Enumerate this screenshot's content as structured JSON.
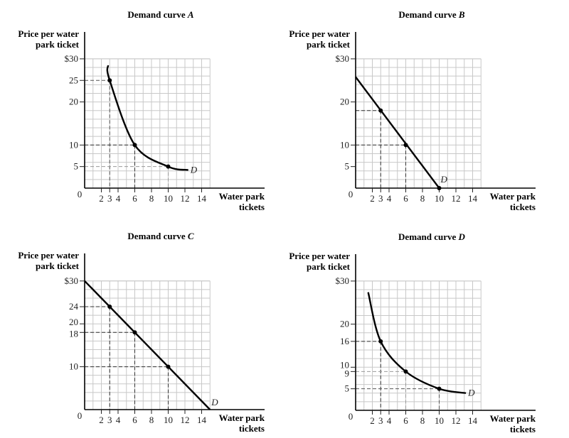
{
  "chart_data": [
    {
      "type": "line",
      "id": "A",
      "title": "Demand curve ",
      "title_var": "A",
      "ylabel": [
        "Price per water",
        "park ticket"
      ],
      "xlabel": [
        "Water park",
        "tickets"
      ],
      "origin_label": "0",
      "xlim": [
        0,
        15
      ],
      "ylim": [
        0,
        30
      ],
      "grid": true,
      "xticks": [
        2,
        3,
        4,
        6,
        8,
        10,
        12,
        14
      ],
      "xtick_labels": [
        "2",
        "3",
        "4",
        "6",
        "8",
        "10",
        "12",
        "14"
      ],
      "yticks": [
        30,
        25,
        20,
        10,
        5
      ],
      "ytick_labels": [
        "$30",
        "25",
        "20",
        "10",
        "5"
      ],
      "curve_shape": "convex",
      "curve_label": "D",
      "curve_start": [
        2.8,
        28.5
      ],
      "curve_end": [
        12.4,
        4.2
      ],
      "points": [
        {
          "x": 3,
          "y": 25
        },
        {
          "x": 6,
          "y": 10
        },
        {
          "x": 10,
          "y": 5
        }
      ],
      "guide_colors": [
        "#555555",
        "#333333",
        "#999999"
      ]
    },
    {
      "type": "line",
      "id": "B",
      "title": "Demand curve ",
      "title_var": "B",
      "ylabel": [
        "Price per water",
        "park ticket"
      ],
      "xlabel": [
        "Water park",
        "tickets"
      ],
      "origin_label": "0",
      "xlim": [
        0,
        15
      ],
      "ylim": [
        0,
        30
      ],
      "grid": true,
      "xticks": [
        2,
        3,
        4,
        6,
        8,
        10,
        12,
        14
      ],
      "xtick_labels": [
        "2",
        "3",
        "4",
        "6",
        "8",
        "10",
        "12",
        "14"
      ],
      "yticks": [
        30,
        20,
        10,
        5
      ],
      "ytick_labels": [
        "$30",
        "20",
        "10",
        "5"
      ],
      "curve_shape": "linear",
      "curve_label": "D",
      "curve_start": [
        0,
        25.8
      ],
      "curve_end": [
        10,
        0
      ],
      "points": [
        {
          "x": 3,
          "y": 18
        },
        {
          "x": 6,
          "y": 10
        },
        {
          "x": 10,
          "y": 0
        }
      ],
      "guide_colors": [
        "#333333",
        "#333333",
        "#333333"
      ]
    },
    {
      "type": "line",
      "id": "C",
      "title": "Demand curve ",
      "title_var": "C",
      "ylabel": [
        "Price per water",
        "park ticket"
      ],
      "xlabel": [
        "Water park",
        "tickets"
      ],
      "origin_label": "0",
      "xlim": [
        0,
        15
      ],
      "ylim": [
        0,
        30
      ],
      "grid": true,
      "xticks": [
        2,
        3,
        4,
        6,
        8,
        10,
        12,
        14
      ],
      "xtick_labels": [
        "2",
        "3",
        "4",
        "6",
        "8",
        "10",
        "12",
        "14"
      ],
      "yticks": [
        30,
        24,
        20,
        18,
        10
      ],
      "ytick_labels": [
        "$30",
        "24",
        "20",
        "18",
        "10"
      ],
      "curve_shape": "linear",
      "curve_label": "D",
      "curve_start": [
        0,
        30
      ],
      "curve_end": [
        15,
        0
      ],
      "points": [
        {
          "x": 3,
          "y": 24
        },
        {
          "x": 6,
          "y": 18
        },
        {
          "x": 10,
          "y": 10
        }
      ],
      "guide_colors": [
        "#333333",
        "#333333",
        "#333333"
      ]
    },
    {
      "type": "line",
      "id": "D",
      "title": "Demand curve ",
      "title_var": "D",
      "ylabel": [
        "Price per water",
        "park ticket"
      ],
      "xlabel": [
        "Water park",
        "tickets"
      ],
      "origin_label": "0",
      "xlim": [
        0,
        15
      ],
      "ylim": [
        0,
        30
      ],
      "grid": true,
      "xticks": [
        2,
        3,
        4,
        6,
        8,
        10,
        12,
        14
      ],
      "xtick_labels": [
        "2",
        "3",
        "4",
        "6",
        "8",
        "10",
        "12",
        "14"
      ],
      "yticks": [
        30,
        20,
        16,
        10,
        9,
        5
      ],
      "ytick_labels": [
        "$30",
        "20",
        "16",
        "10",
        "9",
        "5"
      ],
      "curve_shape": "convex",
      "curve_label": "D",
      "curve_start": [
        1.5,
        27.4
      ],
      "curve_end": [
        13.2,
        4.0
      ],
      "points": [
        {
          "x": 3,
          "y": 16
        },
        {
          "x": 6,
          "y": 9
        },
        {
          "x": 10,
          "y": 5
        }
      ],
      "guide_colors": [
        "#333333",
        "#999999",
        "#555555"
      ]
    }
  ]
}
